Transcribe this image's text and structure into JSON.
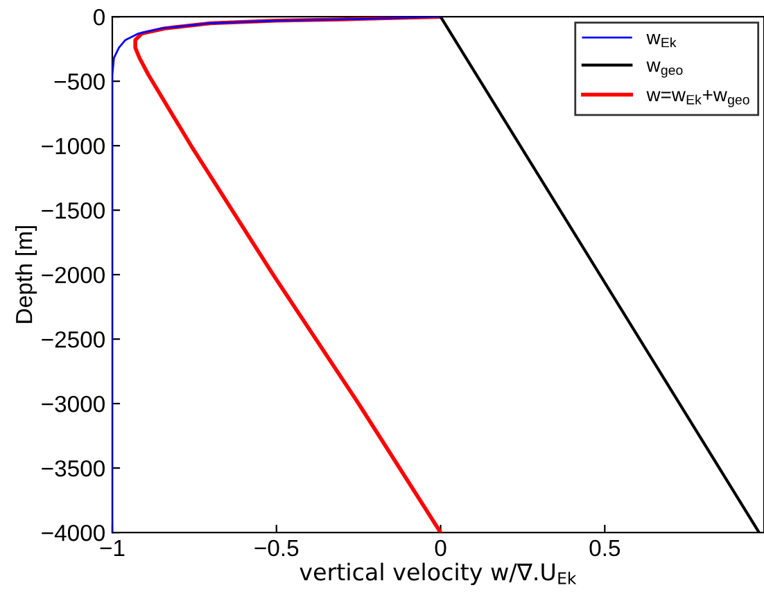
{
  "chart_data": {
    "type": "line",
    "xlabel": "vertical velocity w/∇.U$_{Ek}$",
    "ylabel": "Depth [m]",
    "xlim": [
      -1,
      0.985
    ],
    "ylim": [
      -4000,
      0
    ],
    "xticks": [
      {
        "value": -1,
        "label": "−1"
      },
      {
        "value": -0.5,
        "label": "−0.5"
      },
      0,
      0.5
    ],
    "yticks": [
      {
        "value": -4000,
        "label": "−4000"
      },
      {
        "value": -3500,
        "label": "−3500"
      },
      {
        "value": -3000,
        "label": "−3000"
      },
      {
        "value": -2500,
        "label": "−2500"
      },
      {
        "value": -2000,
        "label": "−2000"
      },
      {
        "value": -1500,
        "label": "−1500"
      },
      {
        "value": -1000,
        "label": "−1000"
      },
      {
        "value": -500,
        "label": "−500"
      },
      0
    ],
    "grid": false,
    "legend": "top right",
    "marker": "none",
    "line_style": "solid",
    "series": [
      {
        "name": "w$_{Ek}$",
        "color": "#0000ff",
        "x": [
          0,
          -0.3,
          -0.5,
          -0.7,
          -0.85,
          -0.92,
          -0.96,
          -0.98,
          -0.995,
          -1,
          -1
        ],
        "values": [
          0,
          -20,
          -30,
          -50,
          -90,
          -130,
          -180,
          -240,
          -320,
          -450,
          -4000
        ]
      },
      {
        "name": "w$_{geo}$",
        "color": "#000000",
        "x": [
          0,
          0.97
        ],
        "values": [
          0,
          -4000
        ]
      },
      {
        "name": "w=w$_{Ek}$+w$_{geo}$",
        "color": "#ff0000",
        "x": [
          0,
          -0.3,
          -0.5,
          -0.7,
          -0.84,
          -0.91,
          -0.93,
          -0.93,
          -0.917,
          -0.89,
          -0.76,
          -0.51,
          -0.25,
          0
        ],
        "values": [
          0,
          -20,
          -30,
          -50,
          -90,
          -130,
          -180,
          -240,
          -320,
          -450,
          -1000,
          -2000,
          -3000,
          -4000
        ]
      }
    ]
  }
}
